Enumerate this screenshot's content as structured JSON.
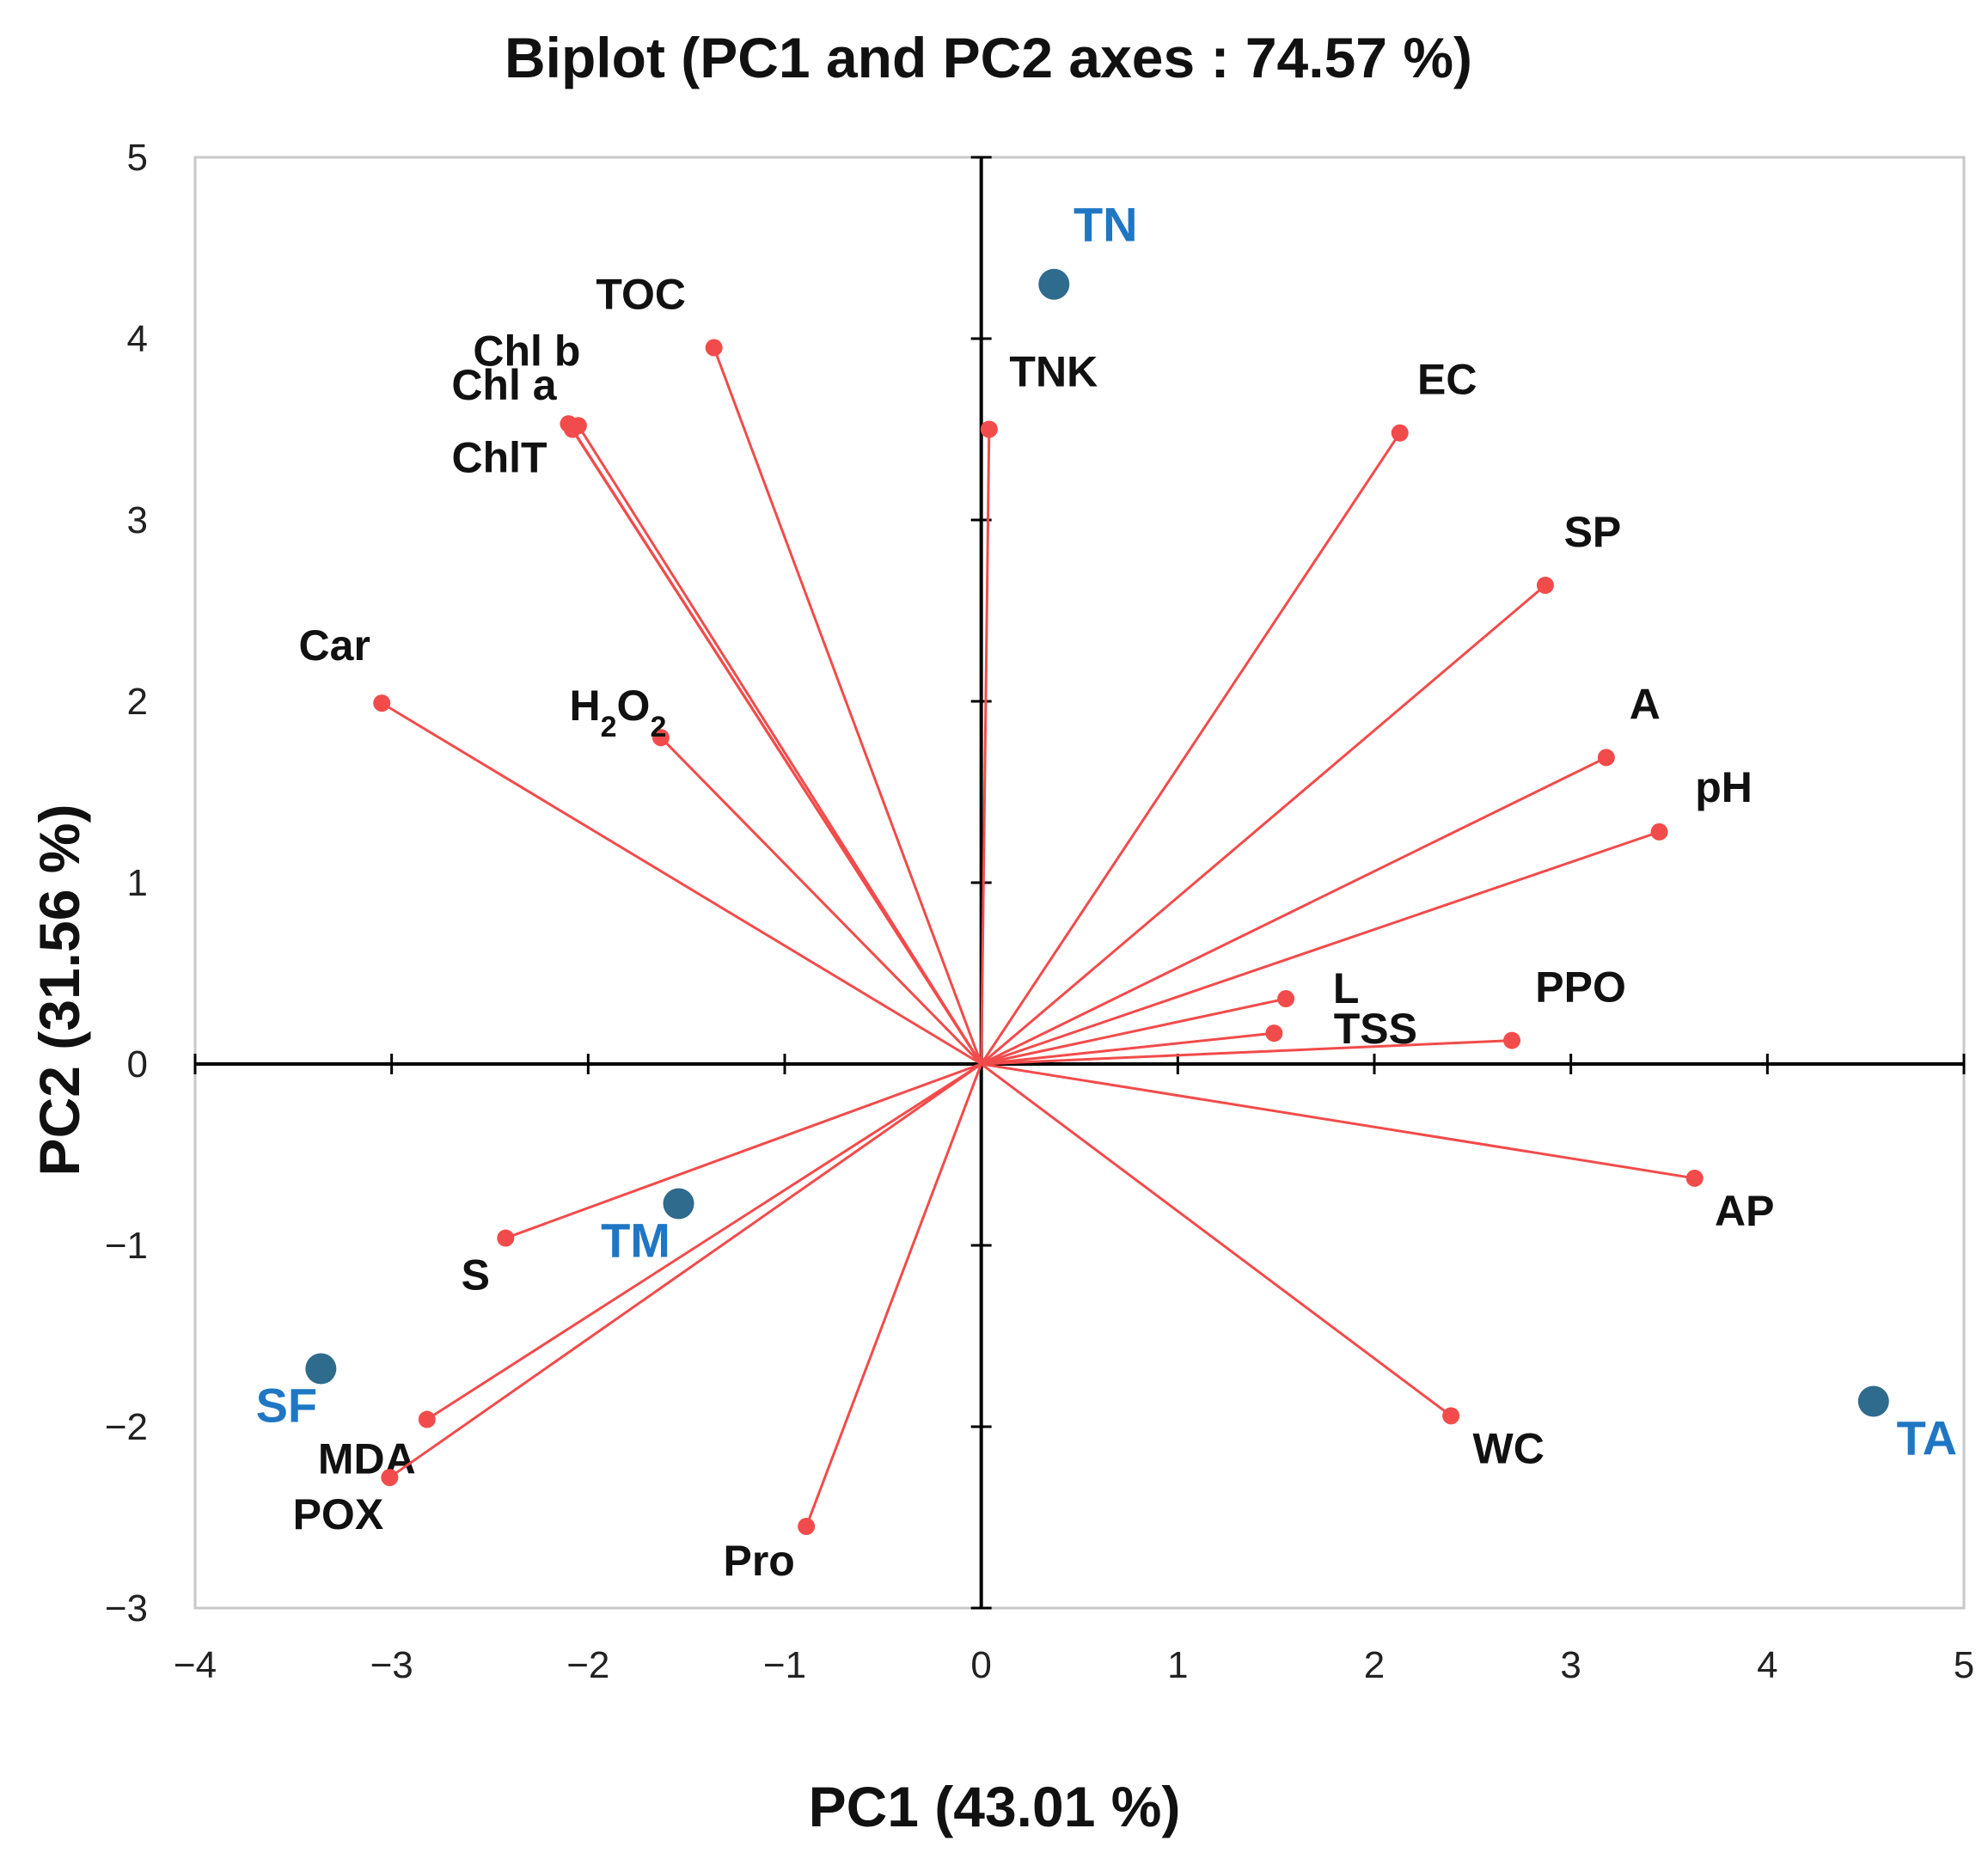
{
  "chart_data": {
    "type": "scatter",
    "subtype": "biplot",
    "title": "Biplot (PC1 and PC2 axes : 74.57 %)",
    "xlabel": "PC1 (43.01 %)",
    "ylabel": "PC2 (31.56 %)",
    "xlim": [
      -4,
      5
    ],
    "ylim": [
      -3,
      5
    ],
    "xticks": [
      -4,
      -3,
      -2,
      -1,
      0,
      1,
      2,
      3,
      4,
      5
    ],
    "yticks": [
      -3,
      -2,
      -1,
      0,
      1,
      2,
      3,
      4,
      5
    ],
    "xtick_labels": [
      "−4",
      "−3",
      "−2",
      "−1",
      "0",
      "1",
      "2",
      "3",
      "4",
      "5"
    ],
    "ytick_labels": [
      "−3",
      "−2",
      "−1",
      "0",
      "1",
      "2",
      "3",
      "4",
      "5"
    ],
    "grid": false,
    "colors": {
      "variables": "#f24b4b",
      "observations": "#2e6b8c",
      "observation_labels": "#1f77c4"
    },
    "series": [
      {
        "kind": "variables",
        "points": [
          {
            "label": "TOC",
            "x": -1.36,
            "y": 3.95
          },
          {
            "label": "Chl b",
            "x": -2.05,
            "y": 3.52
          },
          {
            "label": "Chl a",
            "x": -2.1,
            "y": 3.53
          },
          {
            "label": "ChlT",
            "x": -2.08,
            "y": 3.5
          },
          {
            "label": "TNK",
            "x": 0.04,
            "y": 3.5
          },
          {
            "label": "EC",
            "x": 2.13,
            "y": 3.48
          },
          {
            "label": "SP",
            "x": 2.87,
            "y": 2.64
          },
          {
            "label": "Car",
            "x": -3.05,
            "y": 1.99
          },
          {
            "label": "H2O2",
            "x": -1.63,
            "y": 1.8
          },
          {
            "label": "A",
            "x": 3.18,
            "y": 1.69
          },
          {
            "label": "pH",
            "x": 3.45,
            "y": 1.28
          },
          {
            "label": "L",
            "x": 1.55,
            "y": 0.36
          },
          {
            "label": "TSS",
            "x": 1.49,
            "y": 0.17
          },
          {
            "label": "PPO",
            "x": 2.7,
            "y": 0.13
          },
          {
            "label": "AP",
            "x": 3.63,
            "y": -0.63
          },
          {
            "label": "S",
            "x": -2.42,
            "y": -0.96
          },
          {
            "label": "WC",
            "x": 2.39,
            "y": -1.94
          },
          {
            "label": "MDA",
            "x": -2.82,
            "y": -1.96
          },
          {
            "label": "POX",
            "x": -3.01,
            "y": -2.28
          },
          {
            "label": "Pro",
            "x": -0.89,
            "y": -2.55
          }
        ]
      },
      {
        "kind": "observations",
        "points": [
          {
            "label": "TN",
            "x": 0.37,
            "y": 4.3
          },
          {
            "label": "TM",
            "x": -1.54,
            "y": -0.77
          },
          {
            "label": "SF",
            "x": -3.36,
            "y": -1.68
          },
          {
            "label": "TA",
            "x": 4.54,
            "y": -1.86
          }
        ]
      }
    ],
    "legend": "none"
  }
}
